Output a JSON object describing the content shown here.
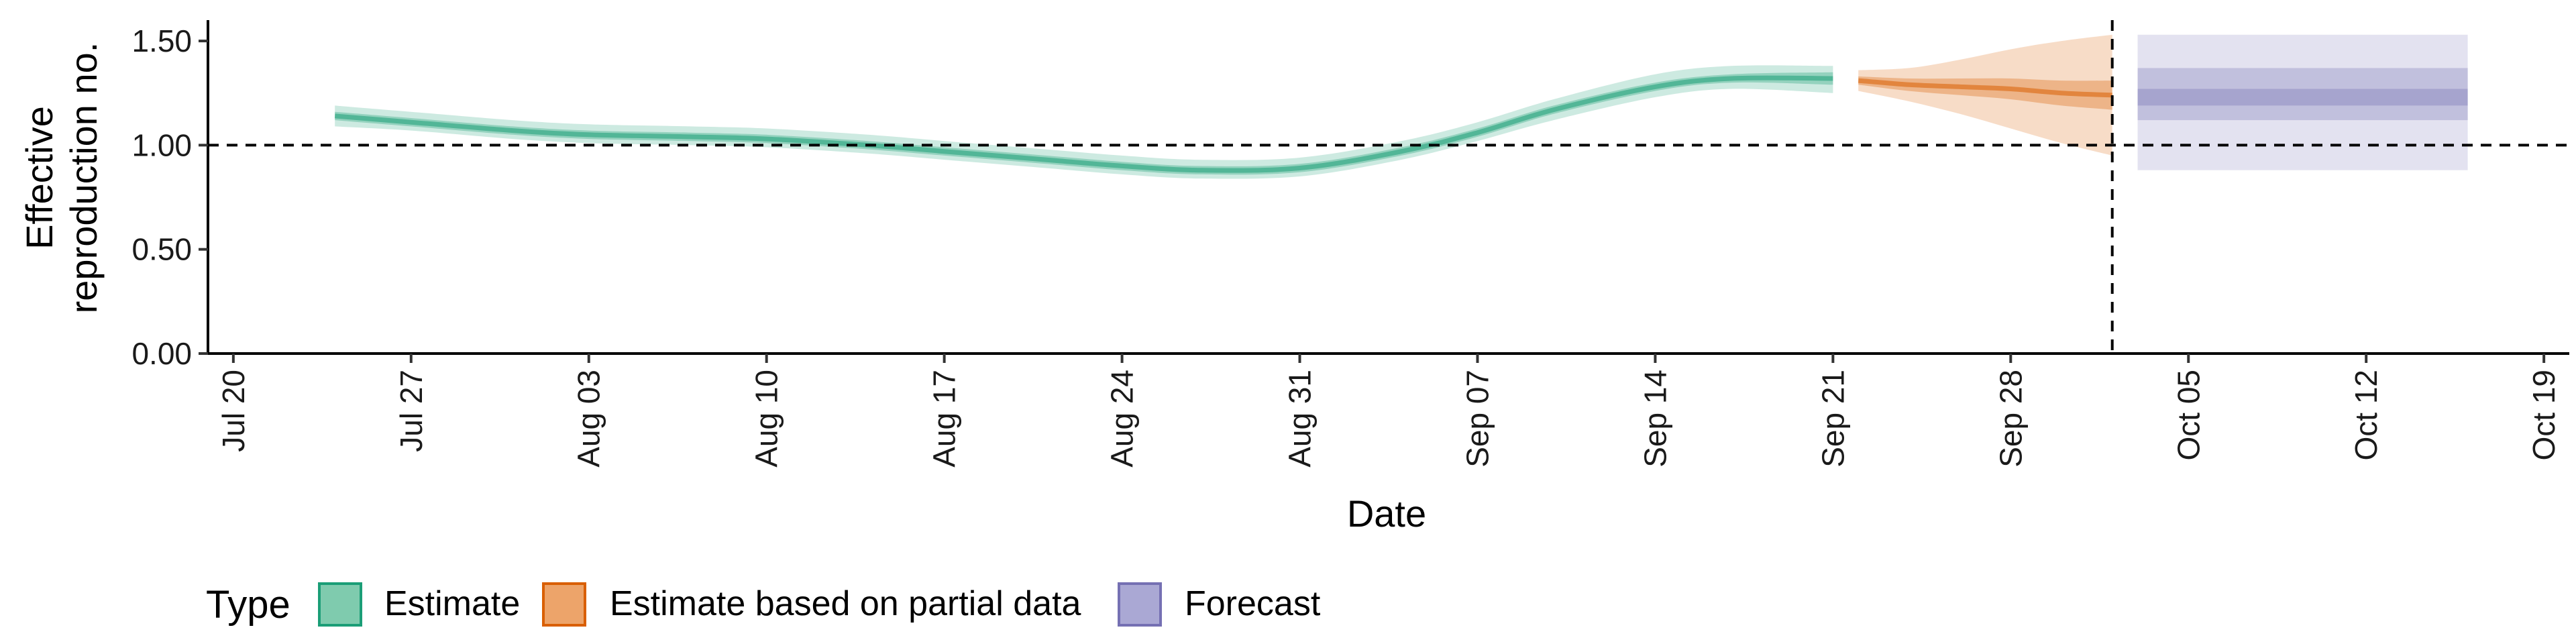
{
  "chart_data": {
    "type": "area",
    "title": "",
    "xlabel": "Date",
    "ylabel": "Effective reproduction no.",
    "ylabel_lines": [
      "Effective",
      "reproduction no."
    ],
    "xlim": [
      "2020-07-19",
      "2020-10-20"
    ],
    "ylim": [
      0,
      1.6
    ],
    "x_ticks": [
      {
        "date": "2020-07-20",
        "label": "Jul 20"
      },
      {
        "date": "2020-07-27",
        "label": "Jul 27"
      },
      {
        "date": "2020-08-03",
        "label": "Aug 03"
      },
      {
        "date": "2020-08-10",
        "label": "Aug 10"
      },
      {
        "date": "2020-08-17",
        "label": "Aug 17"
      },
      {
        "date": "2020-08-24",
        "label": "Aug 24"
      },
      {
        "date": "2020-08-31",
        "label": "Aug 31"
      },
      {
        "date": "2020-09-07",
        "label": "Sep 07"
      },
      {
        "date": "2020-09-14",
        "label": "Sep 14"
      },
      {
        "date": "2020-09-21",
        "label": "Sep 21"
      },
      {
        "date": "2020-09-28",
        "label": "Sep 28"
      },
      {
        "date": "2020-10-05",
        "label": "Oct 05"
      },
      {
        "date": "2020-10-12",
        "label": "Oct 12"
      },
      {
        "date": "2020-10-19",
        "label": "Oct 19"
      }
    ],
    "y_ticks": [
      {
        "value": 0,
        "label": "0.00"
      },
      {
        "value": 0.5,
        "label": "0.50"
      },
      {
        "value": 1.0,
        "label": "1.00"
      },
      {
        "value": 1.5,
        "label": "1.50"
      }
    ],
    "reference_line_y": 1.0,
    "reference_line_x": "2020-10-02",
    "grid": false,
    "legend": {
      "title": "Type",
      "position": "bottom-left",
      "items": [
        {
          "label": "Estimate",
          "fill": "#7fcbae",
          "stroke": "#1b9e77"
        },
        {
          "label": "Estimate based on partial data",
          "fill": "#eda46a",
          "stroke": "#d95f02"
        },
        {
          "label": "Forecast",
          "fill": "#aaa8d4",
          "stroke": "#7570b3"
        }
      ]
    },
    "series": [
      {
        "name": "Estimate",
        "color": "#1b9e77",
        "points": [
          {
            "date": "2020-07-24",
            "median": 1.14,
            "lower_50": 1.12,
            "upper_50": 1.16,
            "lower_90": 1.09,
            "upper_90": 1.19
          },
          {
            "date": "2020-07-27",
            "median": 1.11,
            "lower_50": 1.09,
            "upper_50": 1.13,
            "lower_90": 1.07,
            "upper_90": 1.16
          },
          {
            "date": "2020-07-31",
            "median": 1.07,
            "lower_50": 1.05,
            "upper_50": 1.09,
            "lower_90": 1.03,
            "upper_90": 1.12
          },
          {
            "date": "2020-08-03",
            "median": 1.05,
            "lower_50": 1.03,
            "upper_50": 1.07,
            "lower_90": 1.01,
            "upper_90": 1.1
          },
          {
            "date": "2020-08-07",
            "median": 1.04,
            "lower_50": 1.02,
            "upper_50": 1.06,
            "lower_90": 1.0,
            "upper_90": 1.09
          },
          {
            "date": "2020-08-10",
            "median": 1.03,
            "lower_50": 1.01,
            "upper_50": 1.05,
            "lower_90": 0.99,
            "upper_90": 1.08
          },
          {
            "date": "2020-08-14",
            "median": 1.0,
            "lower_50": 0.98,
            "upper_50": 1.02,
            "lower_90": 0.96,
            "upper_90": 1.05
          },
          {
            "date": "2020-08-17",
            "median": 0.97,
            "lower_50": 0.95,
            "upper_50": 0.99,
            "lower_90": 0.93,
            "upper_90": 1.02
          },
          {
            "date": "2020-08-21",
            "median": 0.93,
            "lower_50": 0.91,
            "upper_50": 0.95,
            "lower_90": 0.89,
            "upper_90": 0.98
          },
          {
            "date": "2020-08-24",
            "median": 0.9,
            "lower_50": 0.88,
            "upper_50": 0.92,
            "lower_90": 0.86,
            "upper_90": 0.95
          },
          {
            "date": "2020-08-27",
            "median": 0.88,
            "lower_50": 0.86,
            "upper_50": 0.9,
            "lower_90": 0.84,
            "upper_90": 0.93
          },
          {
            "date": "2020-08-31",
            "median": 0.89,
            "lower_50": 0.87,
            "upper_50": 0.91,
            "lower_90": 0.85,
            "upper_90": 0.94
          },
          {
            "date": "2020-09-04",
            "median": 0.97,
            "lower_50": 0.95,
            "upper_50": 0.99,
            "lower_90": 0.93,
            "upper_90": 1.02
          },
          {
            "date": "2020-09-07",
            "median": 1.06,
            "lower_50": 1.04,
            "upper_50": 1.08,
            "lower_90": 1.02,
            "upper_90": 1.11
          },
          {
            "date": "2020-09-10",
            "median": 1.17,
            "lower_50": 1.15,
            "upper_50": 1.19,
            "lower_90": 1.12,
            "upper_90": 1.22
          },
          {
            "date": "2020-09-14",
            "median": 1.28,
            "lower_50": 1.26,
            "upper_50": 1.3,
            "lower_90": 1.23,
            "upper_90": 1.34
          },
          {
            "date": "2020-09-17",
            "median": 1.32,
            "lower_50": 1.3,
            "upper_50": 1.34,
            "lower_90": 1.27,
            "upper_90": 1.38
          },
          {
            "date": "2020-09-21",
            "median": 1.32,
            "lower_50": 1.29,
            "upper_50": 1.35,
            "lower_90": 1.25,
            "upper_90": 1.38
          }
        ]
      },
      {
        "name": "Estimate based on partial data",
        "color": "#d95f02",
        "points": [
          {
            "date": "2020-09-22",
            "median": 1.31,
            "lower_50": 1.29,
            "upper_50": 1.33,
            "lower_90": 1.26,
            "upper_90": 1.36
          },
          {
            "date": "2020-09-24",
            "median": 1.29,
            "lower_50": 1.26,
            "upper_50": 1.32,
            "lower_90": 1.21,
            "upper_90": 1.37
          },
          {
            "date": "2020-09-26",
            "median": 1.28,
            "lower_50": 1.24,
            "upper_50": 1.32,
            "lower_90": 1.15,
            "upper_90": 1.41
          },
          {
            "date": "2020-09-28",
            "median": 1.27,
            "lower_50": 1.22,
            "upper_50": 1.32,
            "lower_90": 1.08,
            "upper_90": 1.46
          },
          {
            "date": "2020-09-30",
            "median": 1.25,
            "lower_50": 1.19,
            "upper_50": 1.31,
            "lower_90": 1.01,
            "upper_90": 1.5
          },
          {
            "date": "2020-10-02",
            "median": 1.24,
            "lower_50": 1.17,
            "upper_50": 1.31,
            "lower_90": 0.95,
            "upper_90": 1.53
          }
        ]
      },
      {
        "name": "Forecast",
        "color": "#7570b3",
        "points": [
          {
            "date": "2020-10-03",
            "median": 1.23,
            "lower_50": 1.12,
            "upper_50": 1.37,
            "lower_90": 0.88,
            "upper_90": 1.53
          },
          {
            "date": "2020-10-16",
            "median": 1.23,
            "lower_50": 1.12,
            "upper_50": 1.37,
            "lower_90": 0.88,
            "upper_90": 1.53
          }
        ]
      }
    ]
  }
}
